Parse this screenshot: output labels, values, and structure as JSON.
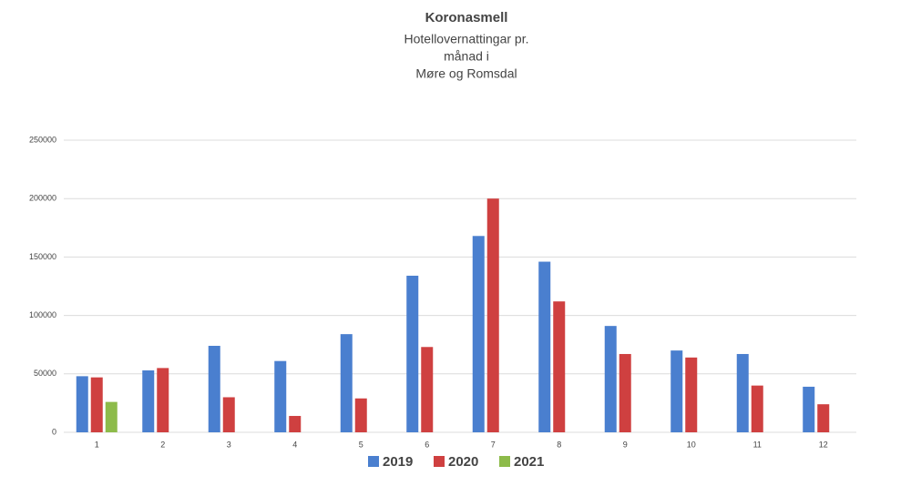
{
  "chart_data": {
    "type": "bar",
    "title": "Koronasmell",
    "subtitle": [
      "Hotellovernattingar pr.",
      "månad i",
      "Møre og Romsdal"
    ],
    "categories": [
      "1",
      "2",
      "3",
      "4",
      "5",
      "6",
      "7",
      "8",
      "9",
      "10",
      "11",
      "12"
    ],
    "series": [
      {
        "name": "2019",
        "color": "#4a7fcf",
        "values": [
          48000,
          53000,
          74000,
          61000,
          84000,
          134000,
          168000,
          146000,
          91000,
          70000,
          67000,
          39000
        ]
      },
      {
        "name": "2020",
        "color": "#cf4040",
        "values": [
          47000,
          55000,
          30000,
          14000,
          29000,
          73000,
          200000,
          112000,
          67000,
          64000,
          40000,
          24000
        ]
      },
      {
        "name": "2021",
        "color": "#8dbb4a",
        "values": [
          26000,
          null,
          null,
          null,
          null,
          null,
          null,
          null,
          null,
          null,
          null,
          null
        ]
      }
    ],
    "ylim": [
      0,
      250000
    ],
    "yticks": [
      0,
      50000,
      100000,
      150000,
      200000,
      250000
    ],
    "grid": true,
    "legend": "bottom"
  }
}
